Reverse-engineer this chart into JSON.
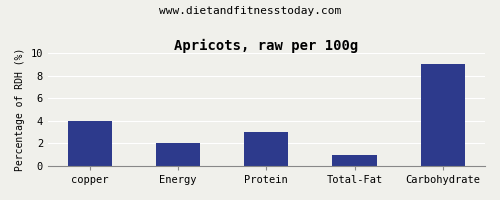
{
  "title": "Apricots, raw per 100g",
  "subtitle": "www.dietandfitnesstoday.com",
  "categories": [
    "copper",
    "Energy",
    "Protein",
    "Total-Fat",
    "Carbohydrate"
  ],
  "values": [
    4.0,
    2.0,
    3.0,
    1.0,
    9.0
  ],
  "bar_color": "#2d3a8c",
  "ylabel": "Percentage of RDH (%)",
  "ylim": [
    0,
    10
  ],
  "yticks": [
    0,
    2,
    4,
    6,
    8,
    10
  ],
  "background_color": "#f0f0eb",
  "title_fontsize": 10,
  "subtitle_fontsize": 8,
  "ylabel_fontsize": 7,
  "tick_fontsize": 7.5
}
